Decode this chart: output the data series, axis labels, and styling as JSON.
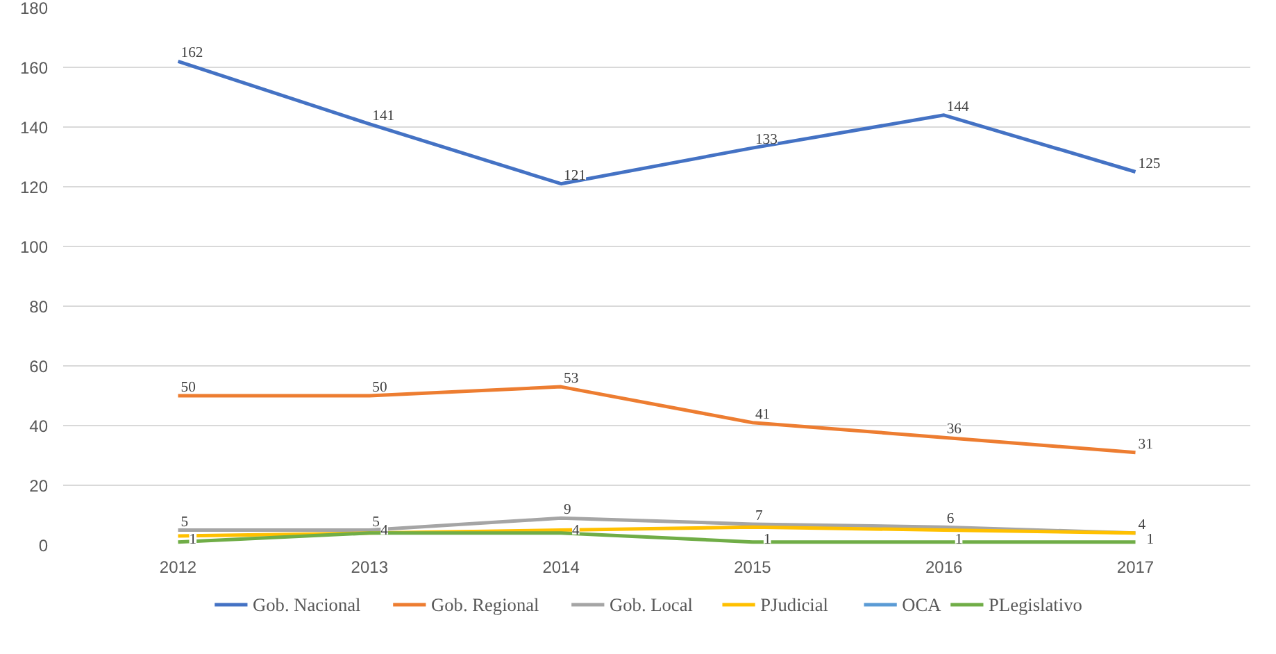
{
  "chart_data": {
    "type": "line",
    "categories": [
      "2012",
      "2013",
      "2014",
      "2015",
      "2016",
      "2017"
    ],
    "ylim": [
      0,
      180
    ],
    "yticks": [
      0,
      20,
      40,
      60,
      80,
      100,
      120,
      140,
      160,
      180
    ],
    "grid": "y",
    "legend": "bottom",
    "marker": "none",
    "line_style": "solid",
    "series": [
      {
        "name": "Gob. Nacional",
        "color": "#4472c4",
        "values": [
          162,
          141,
          121,
          133,
          144,
          125
        ],
        "value_labels": [
          "162",
          "141",
          "121",
          "133",
          "144",
          "125"
        ]
      },
      {
        "name": "Gob. Regional",
        "color": "#ed7d31",
        "values": [
          50,
          50,
          53,
          41,
          36,
          31
        ],
        "value_labels": [
          "50",
          "50",
          "53",
          "41",
          "36",
          "31"
        ]
      },
      {
        "name": "Gob. Local",
        "color": "#a5a5a5",
        "values": [
          5,
          5,
          9,
          7,
          6,
          4
        ],
        "value_labels": [
          "5",
          "5",
          "9",
          "7",
          "6",
          "4"
        ]
      },
      {
        "name": "PJudicial",
        "color": "#ffc000",
        "values": [
          3,
          4,
          5,
          6,
          5,
          4
        ]
      },
      {
        "name": "OCA",
        "color": "#5b9bd5",
        "values": [
          null,
          null,
          null,
          null,
          null,
          null
        ]
      },
      {
        "name": "PLegislativo",
        "color": "#70ad47",
        "values": [
          1,
          4,
          4,
          1,
          1,
          1
        ],
        "value_labels": [
          "1",
          "4",
          "4",
          "1",
          "1",
          "1"
        ]
      }
    ]
  }
}
